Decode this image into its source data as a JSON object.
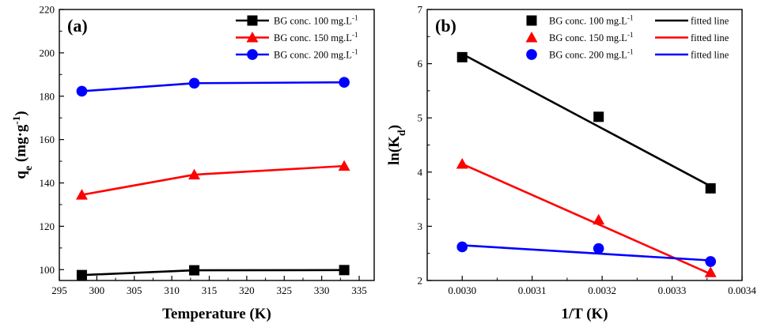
{
  "chart_data": [
    {
      "type": "line",
      "panel_label": "(a)",
      "xlabel": "Temperature (K)",
      "ylabel": "qe (mg·g-1)",
      "ylabel_parts": {
        "main": "q",
        "sub": "e",
        "unit_pre": " (mg·g",
        "sup": "-1",
        "unit_post": ")"
      },
      "xlim": [
        295,
        337
      ],
      "ylim": [
        95,
        220
      ],
      "xticks": [
        295,
        300,
        305,
        310,
        315,
        320,
        325,
        330,
        335
      ],
      "yticks": [
        100,
        120,
        140,
        160,
        180,
        200,
        220
      ],
      "x": [
        298,
        313,
        333
      ],
      "legend_position": "top-right",
      "series": [
        {
          "name": "BG conc. 100 mg.L",
          "name_sup": "-1",
          "color": "#000000",
          "marker": "square",
          "values": [
            97.5,
            99.7,
            99.8
          ]
        },
        {
          "name": "BG conc. 150 mg.L",
          "name_sup": "-1",
          "color": "#ff0000",
          "marker": "triangle",
          "values": [
            134.5,
            143.8,
            147.8
          ]
        },
        {
          "name": "BG conc. 200 mg.L",
          "name_sup": "-1",
          "color": "#0000ff",
          "marker": "circle",
          "values": [
            182.3,
            186.0,
            186.4
          ]
        }
      ]
    },
    {
      "type": "scatter",
      "panel_label": "(b)",
      "xlabel": "1/T (K)",
      "ylabel": "ln(Kd)",
      "ylabel_parts": {
        "main": "ln(K",
        "sub": "d",
        "post": ")"
      },
      "xlim": [
        0.00295,
        0.0034
      ],
      "ylim": [
        2,
        7
      ],
      "xticks": [
        "0.0030",
        "0.0031",
        "0.0032",
        "0.0033",
        "0.0034"
      ],
      "yticks": [
        2,
        3,
        4,
        5,
        6,
        7
      ],
      "legend_position": "top-right",
      "fit_label": "fitted line",
      "series": [
        {
          "name": "BG conc. 100 mg.L",
          "name_sup": "-1",
          "color": "#000000",
          "marker": "square",
          "x": [
            0.003,
            0.003195,
            0.003355
          ],
          "values": [
            6.12,
            5.02,
            3.7
          ],
          "fit": [
            6.18,
            3.74
          ]
        },
        {
          "name": "BG conc. 150 mg.L",
          "name_sup": "-1",
          "color": "#ff0000",
          "marker": "triangle",
          "x": [
            0.003,
            0.003195,
            0.003355
          ],
          "values": [
            4.15,
            3.12,
            2.15
          ],
          "fit": [
            4.15,
            2.12
          ]
        },
        {
          "name": "BG conc. 200 mg.L",
          "name_sup": "-1",
          "color": "#0000ff",
          "marker": "circle",
          "x": [
            0.003,
            0.003195,
            0.003355
          ],
          "values": [
            2.62,
            2.59,
            2.35
          ],
          "fit": [
            2.65,
            2.37
          ]
        }
      ]
    }
  ]
}
